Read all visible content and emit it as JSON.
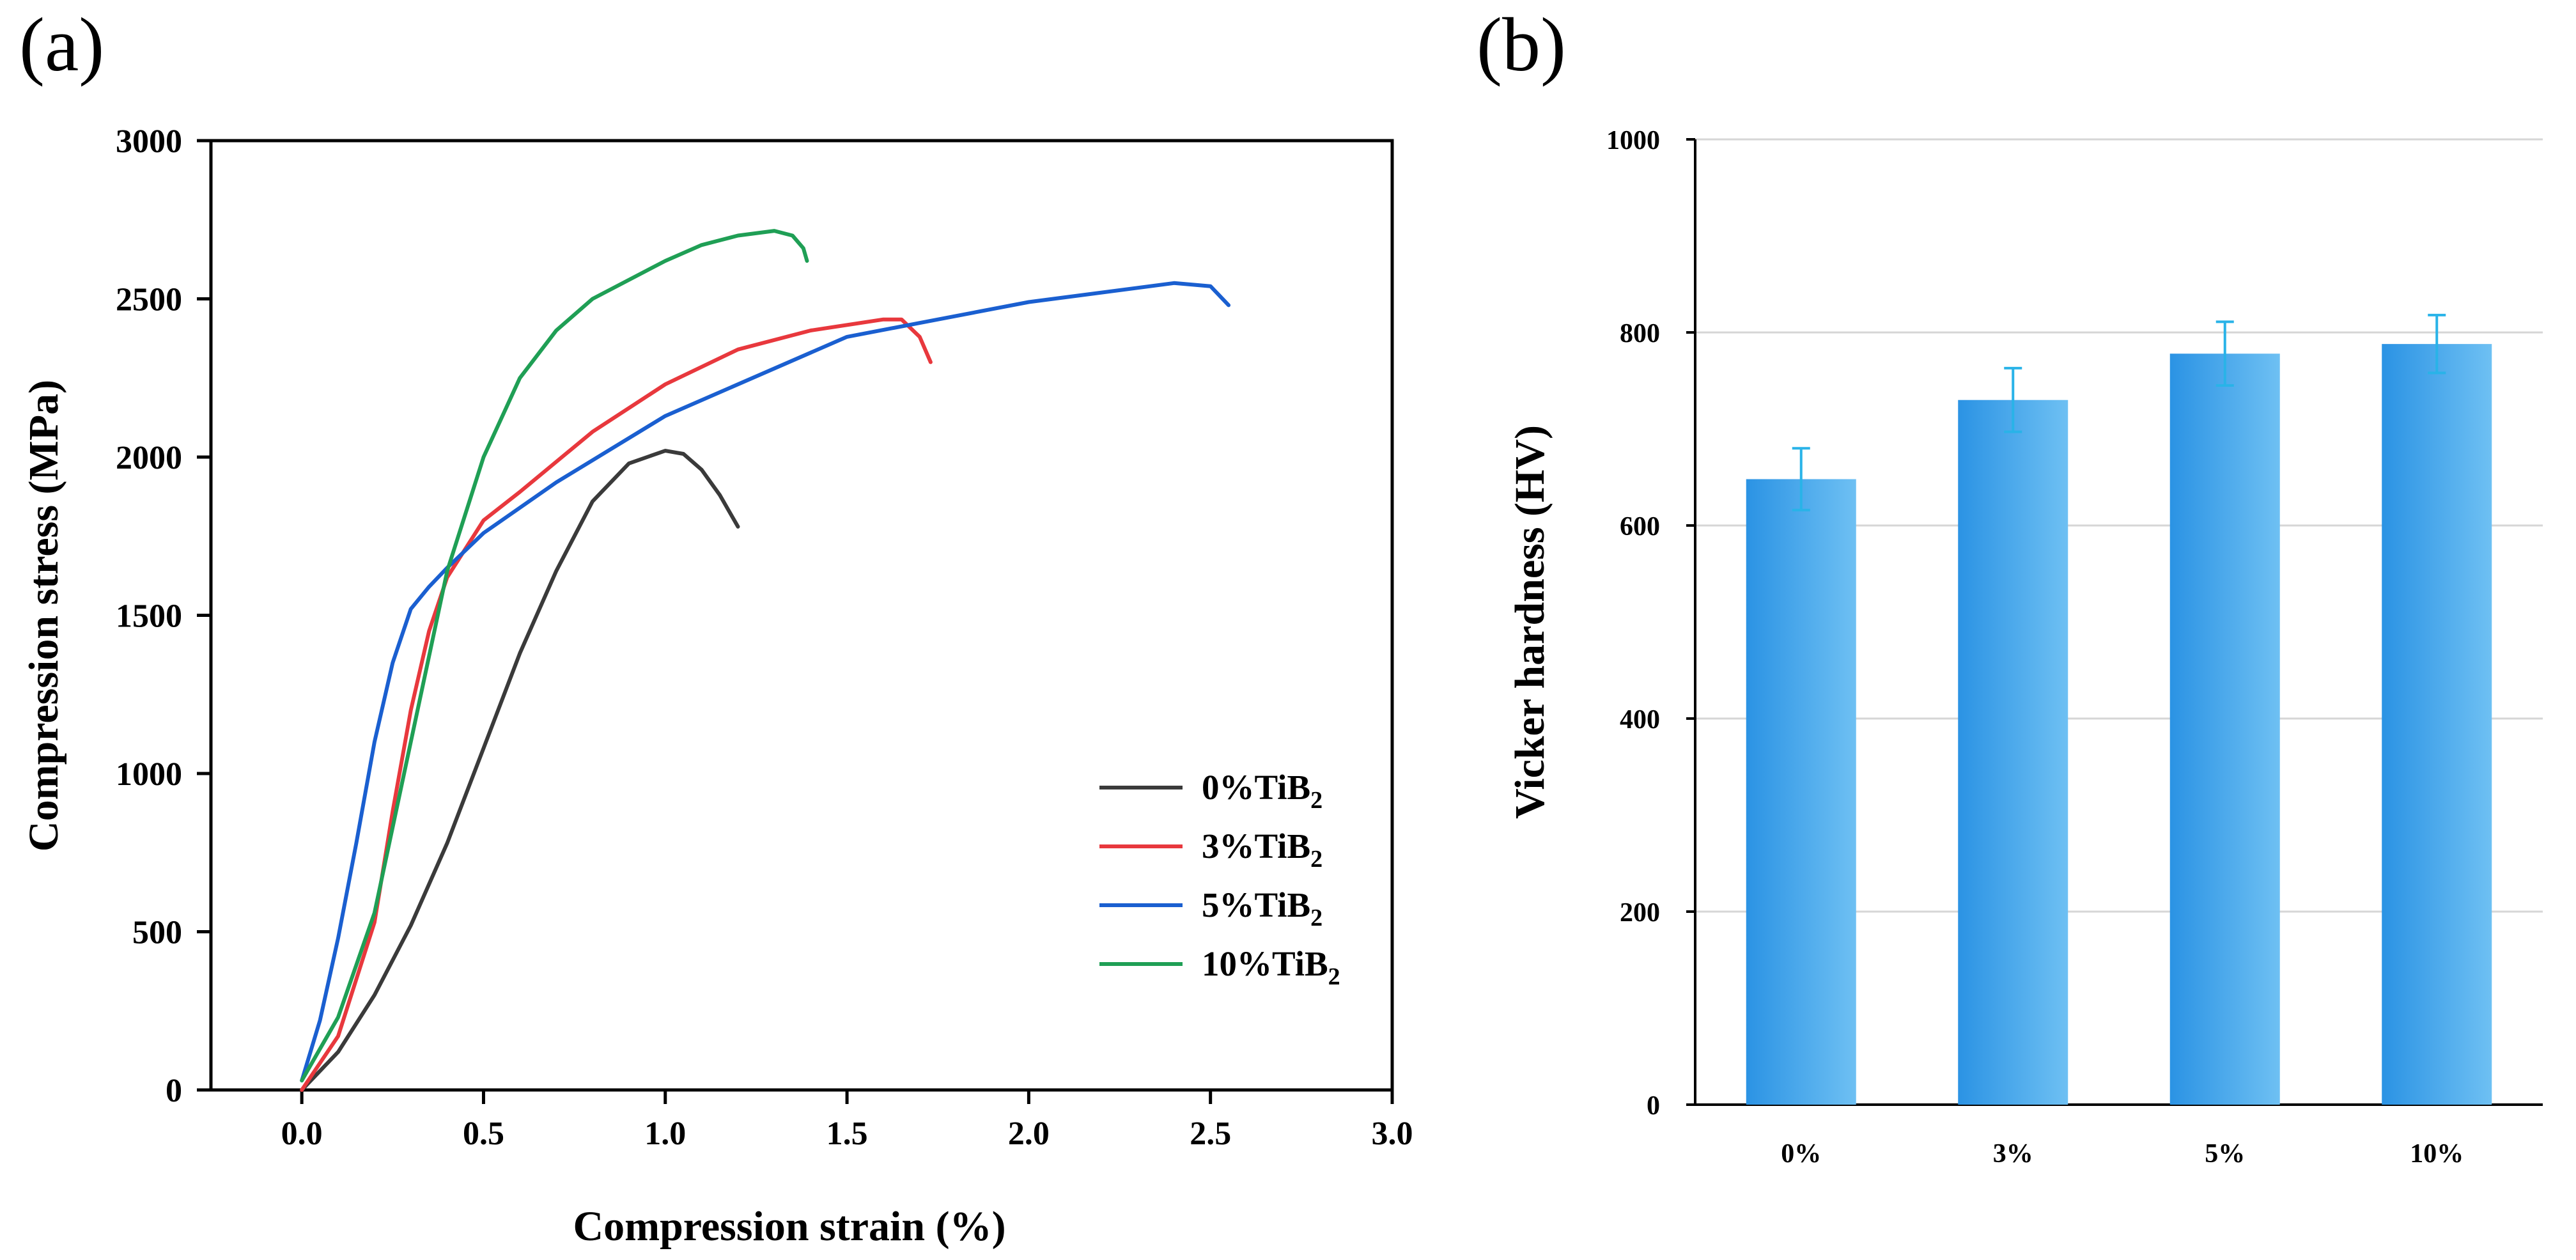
{
  "chart_data": [
    {
      "panel_label": "(a)",
      "type": "line",
      "xlabel": "Compression strain (%)",
      "ylabel": "Compression stress (MPa)",
      "xlim": [
        -0.25,
        3.0
      ],
      "ylim": [
        0,
        3000
      ],
      "xticks": [
        "0.0",
        "0.5",
        "1.0",
        "1.5",
        "2.0",
        "2.5",
        "3.0"
      ],
      "yticks": [
        "0",
        "500",
        "1000",
        "1500",
        "2000",
        "2500",
        "3000"
      ],
      "grid": false,
      "legend_position": "bottom-right",
      "series": [
        {
          "name_prefix": "0%TiB",
          "name_sub": "2",
          "color": "#3a3a3a",
          "x": [
            0,
            0.1,
            0.2,
            0.3,
            0.4,
            0.5,
            0.6,
            0.7,
            0.8,
            0.9,
            1.0,
            1.05,
            1.1,
            1.15,
            1.2
          ],
          "y": [
            0,
            120,
            300,
            520,
            780,
            1080,
            1380,
            1640,
            1860,
            1980,
            2020,
            2010,
            1960,
            1880,
            1780
          ]
        },
        {
          "name_prefix": "3%TiB",
          "name_sub": "2",
          "color": "#e8383d",
          "x": [
            0,
            0.1,
            0.2,
            0.25,
            0.3,
            0.35,
            0.4,
            0.5,
            0.6,
            0.8,
            1.0,
            1.2,
            1.4,
            1.6,
            1.65,
            1.7,
            1.73
          ],
          "y": [
            0,
            170,
            530,
            880,
            1200,
            1450,
            1620,
            1800,
            1890,
            2080,
            2230,
            2340,
            2400,
            2435,
            2435,
            2380,
            2300
          ]
        },
        {
          "name_prefix": "5%TiB",
          "name_sub": "2",
          "color": "#1a5fd0",
          "x": [
            0,
            0.05,
            0.1,
            0.15,
            0.2,
            0.25,
            0.3,
            0.35,
            0.4,
            0.5,
            0.7,
            1.0,
            1.5,
            2.0,
            2.4,
            2.5,
            2.55
          ],
          "y": [
            30,
            220,
            480,
            780,
            1100,
            1350,
            1520,
            1590,
            1650,
            1760,
            1920,
            2130,
            2380,
            2490,
            2550,
            2540,
            2480
          ]
        },
        {
          "name_prefix": "10%TiB",
          "name_sub": "2",
          "color": "#1f9f55",
          "x": [
            0,
            0.1,
            0.2,
            0.3,
            0.4,
            0.5,
            0.6,
            0.7,
            0.8,
            1.0,
            1.1,
            1.2,
            1.3,
            1.35,
            1.38,
            1.39
          ],
          "y": [
            30,
            230,
            560,
            1100,
            1640,
            2000,
            2250,
            2400,
            2500,
            2620,
            2670,
            2700,
            2715,
            2700,
            2660,
            2620
          ]
        }
      ]
    },
    {
      "panel_label": "(b)",
      "type": "bar",
      "ylabel": "Vicker hardness (HV)",
      "ylim": [
        0,
        1000
      ],
      "yticks": [
        "0",
        "200",
        "400",
        "600",
        "800",
        "1000"
      ],
      "categories": [
        "0%",
        "3%",
        "5%",
        "10%"
      ],
      "values": [
        648,
        730,
        778,
        788
      ],
      "errors": [
        32,
        33,
        33,
        30
      ],
      "grid": true,
      "bar_color": "#4aa8ea",
      "error_color": "#29b3e8"
    }
  ]
}
